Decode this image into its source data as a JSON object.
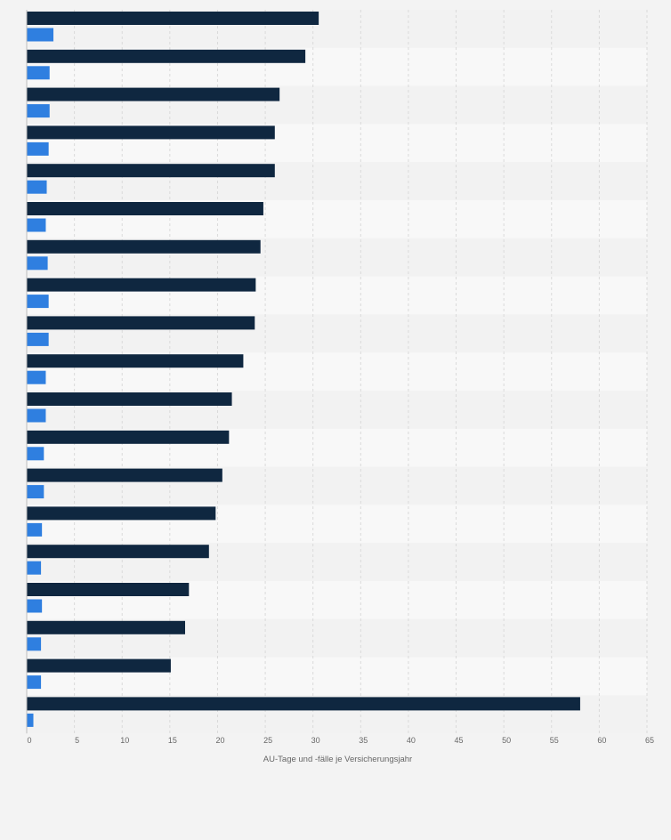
{
  "colors": {
    "background": "#f3f3f3",
    "band_light": "#f8f8f8",
    "band_dark": "#f2f2f2",
    "grid": "#dadada",
    "axis": "#bdbdbd",
    "series_1": "#0f2740",
    "series_2": "#2f7fe0"
  },
  "chart_data": {
    "type": "bar",
    "orientation": "horizontal",
    "categories": [
      "",
      "",
      "",
      "",
      "",
      "",
      "",
      "",
      "",
      "",
      "",
      "",
      "",
      "",
      "",
      "",
      "",
      "",
      ""
    ],
    "series": [
      {
        "color": "#0f2740",
        "values": [
          30.6,
          29.2,
          26.5,
          26.0,
          26.0,
          24.8,
          24.5,
          24.0,
          23.9,
          22.7,
          21.5,
          21.2,
          20.5,
          19.8,
          19.1,
          17.0,
          16.6,
          15.1,
          58.0
        ]
      },
      {
        "color": "#2f7fe0",
        "values": [
          2.8,
          2.4,
          2.4,
          2.3,
          2.1,
          2.0,
          2.2,
          2.3,
          2.3,
          2.0,
          2.0,
          1.8,
          1.8,
          1.6,
          1.5,
          1.6,
          1.5,
          1.5,
          0.7
        ]
      }
    ],
    "xlabel": "AU-Tage und -fälle je Versicherungsjahr",
    "xlim": [
      0,
      65
    ],
    "xticks": [
      0,
      5,
      10,
      15,
      20,
      25,
      30,
      35,
      40,
      45,
      50,
      55,
      60,
      65
    ],
    "grid": true,
    "legend": "none"
  }
}
